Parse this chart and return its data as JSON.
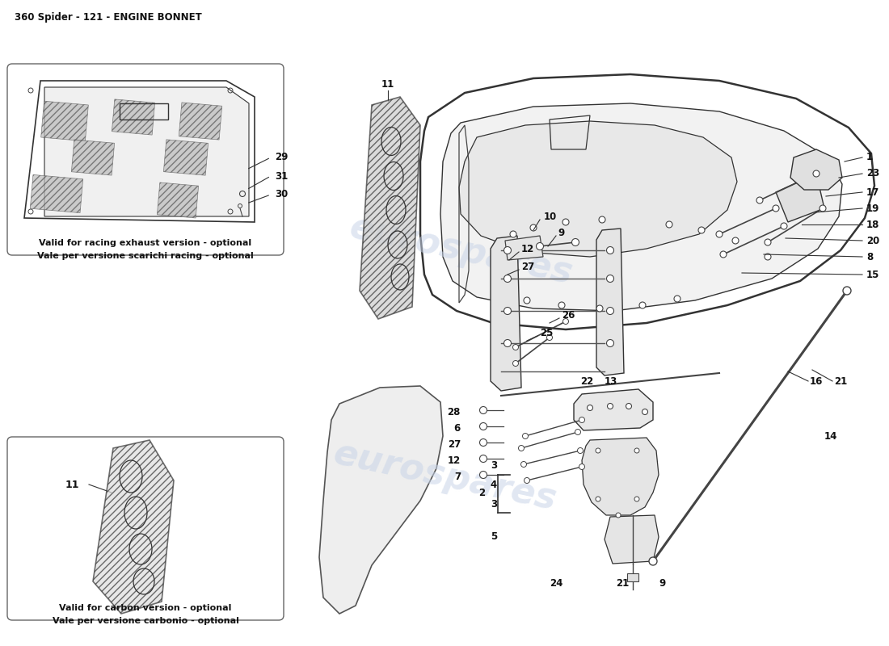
{
  "title": "360 Spider - 121 - ENGINE BONNET",
  "background_color": "#ffffff",
  "watermark_text": "eurospares",
  "watermark_color": "#c8d4e8",
  "box1_caption_line1": "Vale per versione scarichi racing - optional",
  "box1_caption_line2": "Valid for racing exhaust version - optional",
  "box2_caption_line1": "Vale per versione carbonio - optional",
  "box2_caption_line2": "Valid for carbon version - optional"
}
